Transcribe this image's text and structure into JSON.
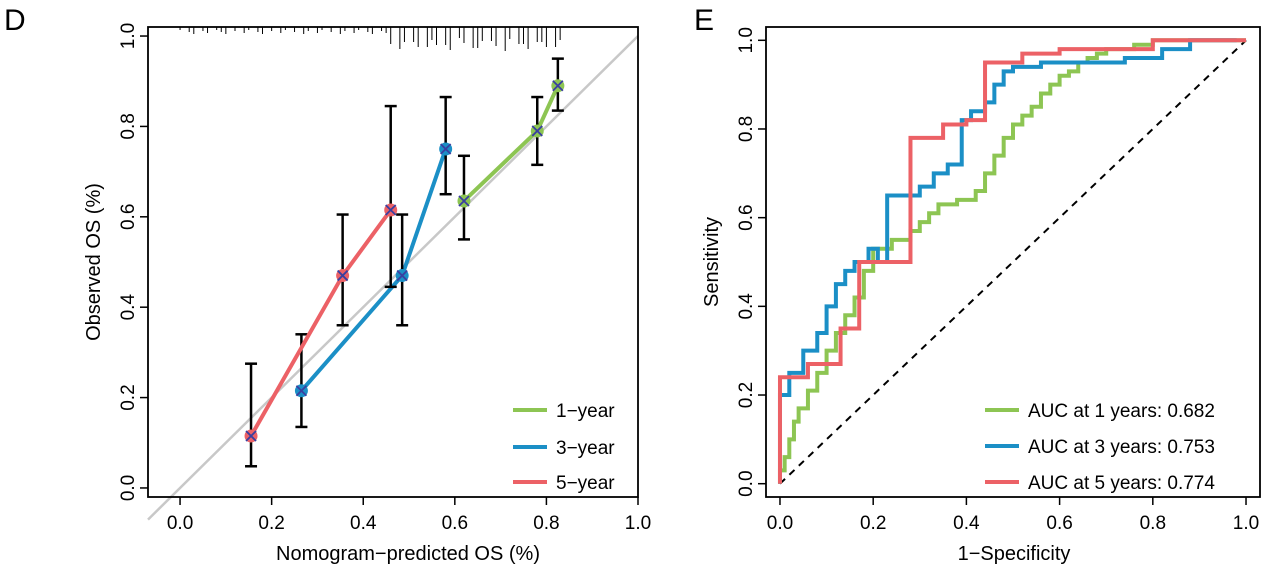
{
  "colors": {
    "one_year": "#8dc553",
    "three_year": "#1b8fc6",
    "five_year": "#ec6166",
    "diagonal": "#c8c8c8",
    "axis": "#000000"
  },
  "chart_data": [
    {
      "panel_label": "D",
      "type": "line",
      "title": "",
      "xlabel": "Nomogram−predicted OS (%)",
      "ylabel": "Observed OS (%)",
      "xlim": [
        -0.07,
        1.0
      ],
      "ylim": [
        -0.02,
        1.02
      ],
      "xticks": [
        0.0,
        0.2,
        0.4,
        0.6,
        0.8,
        1.0
      ],
      "xtick_labels": [
        "0.0",
        "0.2",
        "0.4",
        "0.6",
        "0.8",
        "1.0"
      ],
      "yticks": [
        0.0,
        0.2,
        0.4,
        0.6,
        0.8,
        1.0
      ],
      "ytick_labels": [
        "0.0",
        "0.2",
        "0.4",
        "0.6",
        "0.8",
        "1.0"
      ],
      "reference_line": "ideal diagonal",
      "rug_top": [
        0.0,
        0.02,
        0.03,
        0.05,
        0.06,
        0.08,
        0.09,
        0.1,
        0.12,
        0.14,
        0.15,
        0.17,
        0.18,
        0.2,
        0.22,
        0.23,
        0.25,
        0.27,
        0.28,
        0.3,
        0.31,
        0.33,
        0.35,
        0.36,
        0.38,
        0.39,
        0.41,
        0.42,
        0.44,
        0.45,
        0.46,
        0.48,
        0.49,
        0.51,
        0.52,
        0.54,
        0.55,
        0.56,
        0.58,
        0.59,
        0.61,
        0.62,
        0.64,
        0.65,
        0.66,
        0.68,
        0.69,
        0.71,
        0.72,
        0.74,
        0.75,
        0.76,
        0.78,
        0.79,
        0.8,
        0.82,
        0.83
      ],
      "legend_position": "bottom-right",
      "series": [
        {
          "name": "1−year",
          "color_key": "one_year",
          "points": [
            {
              "x": 0.62,
              "y": 0.635,
              "lo": 0.55,
              "hi": 0.735
            },
            {
              "x": 0.78,
              "y": 0.79,
              "lo": 0.715,
              "hi": 0.865
            },
            {
              "x": 0.825,
              "y": 0.89,
              "lo": 0.835,
              "hi": 0.95
            }
          ]
        },
        {
          "name": "3−year",
          "color_key": "three_year",
          "points": [
            {
              "x": 0.265,
              "y": 0.215,
              "lo": 0.135,
              "hi": 0.34
            },
            {
              "x": 0.485,
              "y": 0.47,
              "lo": 0.36,
              "hi": 0.605
            },
            {
              "x": 0.58,
              "y": 0.75,
              "lo": 0.65,
              "hi": 0.865
            }
          ]
        },
        {
          "name": "5−year",
          "color_key": "five_year",
          "points": [
            {
              "x": 0.155,
              "y": 0.115,
              "lo": 0.048,
              "hi": 0.275
            },
            {
              "x": 0.355,
              "y": 0.47,
              "lo": 0.36,
              "hi": 0.605
            },
            {
              "x": 0.46,
              "y": 0.615,
              "lo": 0.445,
              "hi": 0.845
            }
          ]
        }
      ]
    },
    {
      "panel_label": "E",
      "type": "line",
      "title": "",
      "xlabel": "1−Specificity",
      "ylabel": "Sensitivity",
      "xlim": [
        -0.03,
        1.03
      ],
      "ylim": [
        -0.03,
        1.03
      ],
      "xticks": [
        0.0,
        0.2,
        0.4,
        0.6,
        0.8,
        1.0
      ],
      "xtick_labels": [
        "0.0",
        "0.2",
        "0.4",
        "0.6",
        "0.8",
        "1.0"
      ],
      "yticks": [
        0.0,
        0.2,
        0.4,
        0.6,
        0.8,
        1.0
      ],
      "ytick_labels": [
        "0.0",
        "0.2",
        "0.4",
        "0.6",
        "0.8",
        "1.0"
      ],
      "reference_line": "dashed diagonal",
      "legend_position": "bottom-right",
      "series": [
        {
          "name": "AUC at 1 years: 0.682",
          "color_key": "one_year",
          "x": [
            0.0,
            0.0,
            0.01,
            0.01,
            0.02,
            0.02,
            0.03,
            0.03,
            0.04,
            0.04,
            0.06,
            0.06,
            0.08,
            0.08,
            0.1,
            0.1,
            0.12,
            0.12,
            0.14,
            0.14,
            0.16,
            0.16,
            0.18,
            0.18,
            0.2,
            0.2,
            0.24,
            0.24,
            0.28,
            0.28,
            0.3,
            0.3,
            0.32,
            0.32,
            0.34,
            0.34,
            0.38,
            0.38,
            0.42,
            0.42,
            0.44,
            0.44,
            0.46,
            0.46,
            0.48,
            0.48,
            0.5,
            0.5,
            0.52,
            0.52,
            0.54,
            0.54,
            0.56,
            0.56,
            0.58,
            0.58,
            0.6,
            0.6,
            0.62,
            0.62,
            0.64,
            0.64,
            0.66,
            0.66,
            0.68,
            0.68,
            0.7,
            0.7,
            0.76,
            0.76,
            0.8,
            0.8,
            0.82,
            0.82,
            0.86,
            0.86,
            0.9,
            0.9,
            1.0
          ],
          "y": [
            0.0,
            0.03,
            0.03,
            0.06,
            0.06,
            0.1,
            0.1,
            0.14,
            0.14,
            0.17,
            0.17,
            0.21,
            0.21,
            0.25,
            0.25,
            0.3,
            0.3,
            0.34,
            0.34,
            0.38,
            0.38,
            0.42,
            0.42,
            0.48,
            0.48,
            0.53,
            0.53,
            0.55,
            0.55,
            0.57,
            0.57,
            0.59,
            0.59,
            0.61,
            0.61,
            0.63,
            0.63,
            0.64,
            0.64,
            0.66,
            0.66,
            0.7,
            0.7,
            0.74,
            0.74,
            0.78,
            0.78,
            0.81,
            0.81,
            0.83,
            0.83,
            0.85,
            0.85,
            0.88,
            0.88,
            0.9,
            0.9,
            0.92,
            0.92,
            0.93,
            0.93,
            0.95,
            0.95,
            0.96,
            0.96,
            0.97,
            0.97,
            0.98,
            0.98,
            0.99,
            0.99,
            1.0,
            1.0,
            1.0,
            1.0,
            1.0,
            1.0,
            1.0,
            1.0
          ]
        },
        {
          "name": "AUC at 3 years: 0.753",
          "color_key": "three_year",
          "x": [
            0.0,
            0.0,
            0.02,
            0.02,
            0.05,
            0.05,
            0.08,
            0.08,
            0.1,
            0.1,
            0.12,
            0.12,
            0.14,
            0.14,
            0.16,
            0.16,
            0.19,
            0.19,
            0.21,
            0.21,
            0.23,
            0.23,
            0.26,
            0.26,
            0.3,
            0.3,
            0.33,
            0.33,
            0.36,
            0.36,
            0.39,
            0.39,
            0.41,
            0.41,
            0.44,
            0.44,
            0.46,
            0.46,
            0.48,
            0.48,
            0.5,
            0.5,
            0.56,
            0.56,
            0.74,
            0.74,
            0.82,
            0.82,
            0.88,
            0.88,
            0.98
          ],
          "y": [
            0.0,
            0.2,
            0.2,
            0.25,
            0.25,
            0.3,
            0.3,
            0.34,
            0.34,
            0.4,
            0.4,
            0.45,
            0.45,
            0.48,
            0.48,
            0.5,
            0.5,
            0.53,
            0.53,
            0.5,
            0.5,
            0.65,
            0.65,
            0.65,
            0.65,
            0.67,
            0.67,
            0.7,
            0.7,
            0.72,
            0.72,
            0.82,
            0.82,
            0.84,
            0.84,
            0.86,
            0.86,
            0.9,
            0.9,
            0.93,
            0.93,
            0.94,
            0.94,
            0.95,
            0.95,
            0.96,
            0.96,
            0.98,
            0.98,
            1.0,
            1.0
          ]
        },
        {
          "name": "AUC at 5 years: 0.774",
          "color_key": "five_year",
          "x": [
            0.0,
            0.0,
            0.06,
            0.06,
            0.13,
            0.13,
            0.17,
            0.17,
            0.22,
            0.22,
            0.28,
            0.28,
            0.35,
            0.35,
            0.4,
            0.4,
            0.44,
            0.44,
            0.52,
            0.52,
            0.6,
            0.6,
            0.8,
            0.8,
            1.0
          ],
          "y": [
            0.0,
            0.24,
            0.24,
            0.27,
            0.27,
            0.35,
            0.35,
            0.5,
            0.5,
            0.5,
            0.5,
            0.78,
            0.78,
            0.81,
            0.81,
            0.82,
            0.82,
            0.95,
            0.95,
            0.97,
            0.97,
            0.98,
            0.98,
            1.0,
            1.0
          ]
        }
      ]
    }
  ]
}
